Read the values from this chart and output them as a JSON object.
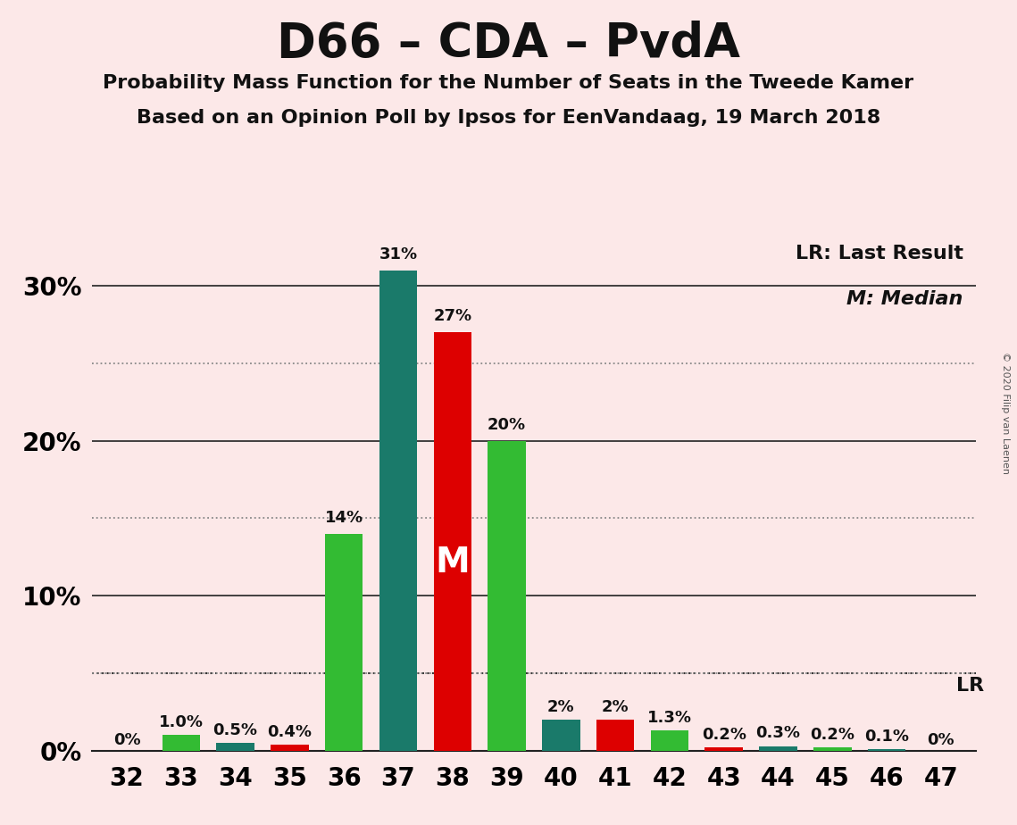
{
  "title": "D66 – CDA – PvdA",
  "subtitle1": "Probability Mass Function for the Number of Seats in the Tweede Kamer",
  "subtitle2": "Based on an Opinion Poll by Ipsos for EenVandaag, 19 March 2018",
  "copyright": "© 2020 Filip van Laenen",
  "seats": [
    32,
    33,
    34,
    35,
    36,
    37,
    38,
    39,
    40,
    41,
    42,
    43,
    44,
    45,
    46,
    47
  ],
  "seat_values": [
    0.0,
    1.0,
    0.5,
    0.4,
    14.0,
    31.0,
    27.0,
    20.0,
    2.0,
    2.0,
    1.3,
    0.2,
    0.3,
    0.2,
    0.1,
    0.0
  ],
  "seat_colors": [
    "teal",
    "bright_green",
    "teal",
    "red",
    "bright_green",
    "teal",
    "red",
    "bright_green",
    "teal",
    "red",
    "bright_green",
    "red",
    "teal",
    "bright_green",
    "teal",
    "bright_green"
  ],
  "bar_labels": [
    "0%",
    "1.0%",
    "0.5%",
    "0.4%",
    "14%",
    "31%",
    "27%",
    "20%",
    "2%",
    "2%",
    "1.3%",
    "0.2%",
    "0.3%",
    "0.2%",
    "0.1%",
    "0%"
  ],
  "show_label": [
    true,
    true,
    true,
    true,
    true,
    true,
    true,
    true,
    true,
    true,
    true,
    true,
    true,
    true,
    true,
    true
  ],
  "median_idx": 6,
  "lr_level": 5.0,
  "ylim_max": 33,
  "yticks": [
    0,
    10,
    20,
    30
  ],
  "ytick_labels": [
    "0%",
    "10%",
    "20%",
    "30%"
  ],
  "dotted_yticks": [
    5,
    15,
    25
  ],
  "background_color": "#fce8e8",
  "teal_color": "#1a7a6a",
  "bright_green_color": "#33bb33",
  "red_color": "#dd0000",
  "legend_lr": "LR: Last Result",
  "legend_m": "M: Median",
  "annotation_m": "M",
  "label_fontsize": 13,
  "tick_fontsize": 20,
  "title_fontsize": 38,
  "subtitle_fontsize": 16,
  "legend_fontsize": 16,
  "bar_width": 0.7
}
